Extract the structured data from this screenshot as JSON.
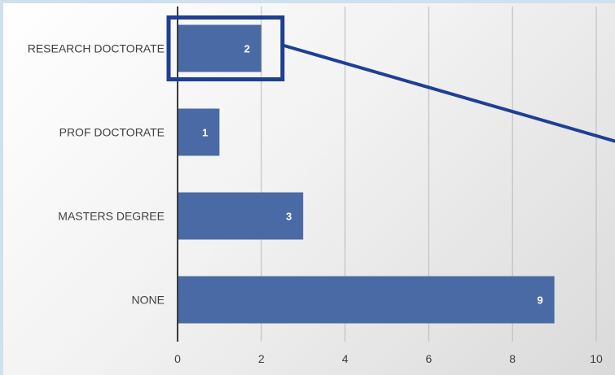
{
  "chart_data": {
    "type": "bar",
    "orientation": "horizontal",
    "categories": [
      "RESEARCH DOCTORATE",
      "PROF DOCTORATE",
      "MASTERS DEGREE",
      "NONE"
    ],
    "values": [
      2,
      1,
      3,
      9
    ],
    "data_labels": [
      "2",
      "1",
      "3",
      "9"
    ],
    "title": "",
    "xlabel": "",
    "ylabel": "",
    "xlim": [
      0,
      10
    ],
    "x_ticks": [
      0,
      2,
      4,
      6,
      8,
      10
    ],
    "x_tick_labels": [
      "0",
      "2",
      "4",
      "6",
      "8",
      "10"
    ],
    "grid": true,
    "legend": "none",
    "highlight": {
      "category": "RESEARCH DOCTORATE",
      "style": "box-with-callout-line"
    },
    "colors": {
      "bar": "#4a6aa5",
      "highlight": "#1f3f94",
      "axis": "#3a3a3a",
      "grid": "#b9b9b9"
    }
  }
}
